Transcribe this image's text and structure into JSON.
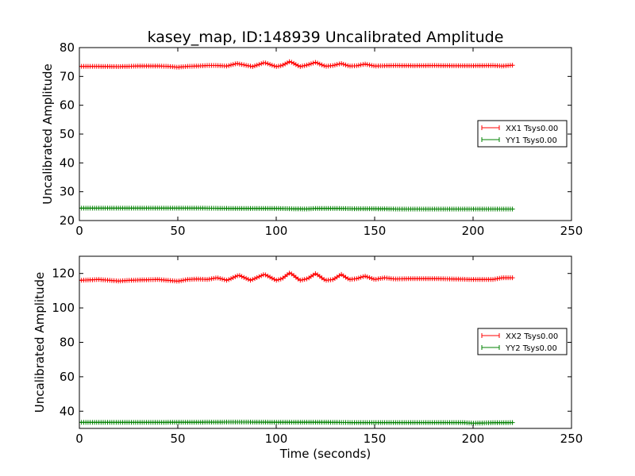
{
  "figure": {
    "background": "#ffffff"
  },
  "chart_data": [
    {
      "type": "line",
      "title": "kasey_map, ID:148939 Uncalibrated Amplitude",
      "xlabel": "",
      "ylabel": "Uncalibrated Amplitude",
      "xlim": [
        0,
        250
      ],
      "ylim": [
        20,
        80
      ],
      "xticks": [
        0,
        50,
        100,
        150,
        200,
        250
      ],
      "yticks": [
        20,
        30,
        40,
        50,
        60,
        70,
        80
      ],
      "legend_position": "center-right",
      "series": [
        {
          "name": "XX1 Tsys0.00",
          "color": "#ff0000",
          "marker": "+",
          "x": [
            0,
            10,
            20,
            30,
            40,
            45,
            50,
            55,
            60,
            65,
            70,
            75,
            80,
            85,
            88,
            94,
            100,
            103,
            107,
            112,
            116,
            120,
            125,
            129,
            133,
            137,
            141,
            145,
            150,
            160,
            170,
            180,
            190,
            200,
            210,
            215,
            220
          ],
          "y": [
            73.5,
            73.5,
            73.4,
            73.6,
            73.6,
            73.5,
            73.2,
            73.5,
            73.6,
            73.8,
            73.8,
            73.6,
            74.5,
            73.8,
            73.4,
            74.8,
            73.4,
            73.8,
            75.2,
            73.4,
            74.0,
            74.9,
            73.5,
            73.8,
            74.5,
            73.6,
            73.7,
            74.3,
            73.6,
            73.8,
            73.7,
            73.8,
            73.7,
            73.7,
            73.8,
            73.6,
            73.9
          ]
        },
        {
          "name": "YY1 Tsys0.00",
          "color": "#008000",
          "marker": "+",
          "x": [
            0,
            20,
            40,
            60,
            80,
            100,
            115,
            120,
            130,
            140,
            150,
            160,
            180,
            200,
            220
          ],
          "y": [
            24.3,
            24.3,
            24.3,
            24.3,
            24.2,
            24.2,
            24.0,
            24.2,
            24.2,
            24.1,
            24.1,
            24.0,
            24.0,
            24.0,
            24.0
          ]
        }
      ]
    },
    {
      "type": "line",
      "title": "",
      "xlabel": "Time (seconds)",
      "ylabel": "Uncalibrated Amplitude",
      "xlim": [
        0,
        250
      ],
      "ylim": [
        30,
        130
      ],
      "xticks": [
        0,
        50,
        100,
        150,
        200,
        250
      ],
      "yticks": [
        40,
        60,
        80,
        100,
        120
      ],
      "legend_position": "center-right",
      "series": [
        {
          "name": "XX2 Tsys0.00",
          "color": "#ff0000",
          "marker": "+",
          "x": [
            0,
            10,
            20,
            25,
            30,
            40,
            45,
            50,
            55,
            60,
            65,
            70,
            75,
            81,
            87,
            94,
            100,
            103,
            107,
            112,
            116,
            120,
            125,
            129,
            133,
            137,
            141,
            145,
            150,
            155,
            160,
            170,
            180,
            190,
            200,
            210,
            215,
            220
          ],
          "y": [
            116.0,
            116.5,
            115.6,
            116.0,
            116.2,
            116.5,
            116.0,
            115.5,
            116.5,
            116.8,
            116.5,
            117.5,
            116.0,
            119.0,
            116.0,
            119.5,
            116.0,
            117.0,
            120.5,
            116.0,
            117.0,
            120.0,
            116.0,
            116.5,
            119.5,
            116.5,
            117.0,
            118.5,
            116.5,
            117.5,
            116.8,
            117.0,
            117.0,
            116.8,
            116.5,
            116.5,
            117.5,
            117.5
          ]
        },
        {
          "name": "YY2 Tsys0.00",
          "color": "#008000",
          "marker": "+",
          "x": [
            0,
            20,
            40,
            60,
            80,
            100,
            120,
            140,
            160,
            180,
            195,
            200,
            210,
            220
          ],
          "y": [
            33.5,
            33.5,
            33.5,
            33.6,
            33.7,
            33.6,
            33.6,
            33.4,
            33.4,
            33.4,
            33.4,
            33.0,
            33.3,
            33.4
          ]
        }
      ]
    }
  ]
}
